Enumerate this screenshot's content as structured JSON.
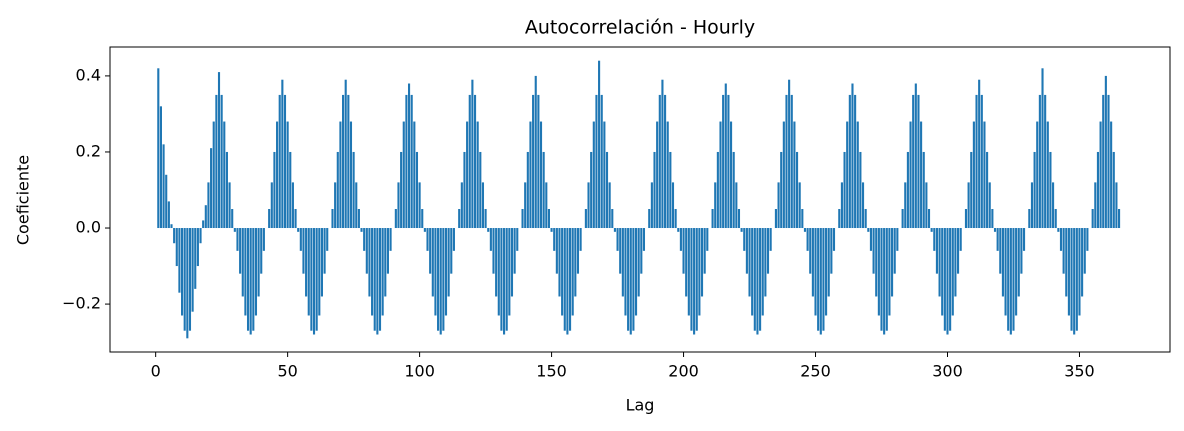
{
  "chart_data": {
    "type": "bar",
    "title": "Autocorrelación - Hourly",
    "xlabel": "Lag",
    "ylabel": "Coeficiente",
    "color": "#1f77b4",
    "x": [
      1,
      2,
      3,
      4,
      5,
      6,
      7,
      8,
      9,
      10,
      11,
      12,
      13,
      14,
      15,
      16,
      17,
      18,
      19,
      20,
      21,
      22,
      23,
      24,
      25,
      26,
      27,
      28,
      29,
      30,
      31,
      32,
      33,
      34,
      35,
      36,
      37,
      38,
      39,
      40,
      41,
      42,
      43,
      44,
      45,
      46,
      47,
      48,
      49,
      50,
      51,
      52,
      53,
      54,
      55,
      56,
      57,
      58,
      59,
      60,
      61,
      62,
      63,
      64,
      65,
      66,
      67,
      68,
      69,
      70,
      71,
      72,
      73,
      74,
      75,
      76,
      77,
      78,
      79,
      80,
      81,
      82,
      83,
      84,
      85,
      86,
      87,
      88,
      89,
      90,
      91,
      92,
      93,
      94,
      95,
      96,
      97,
      98,
      99,
      100,
      101,
      102,
      103,
      104,
      105,
      106,
      107,
      108,
      109,
      110,
      111,
      112,
      113,
      114,
      115,
      116,
      117,
      118,
      119,
      120,
      121,
      122,
      123,
      124,
      125,
      126,
      127,
      128,
      129,
      130,
      131,
      132,
      133,
      134,
      135,
      136,
      137,
      138,
      139,
      140,
      141,
      142,
      143,
      144,
      145,
      146,
      147,
      148,
      149,
      150,
      151,
      152,
      153,
      154,
      155,
      156,
      157,
      158,
      159,
      160,
      161,
      162,
      163,
      164,
      165,
      166,
      167,
      168,
      169,
      170,
      171,
      172,
      173,
      174,
      175,
      176,
      177,
      178,
      179,
      180,
      181,
      182,
      183,
      184,
      185,
      186,
      187,
      188,
      189,
      190,
      191,
      192,
      193,
      194,
      195,
      196,
      197,
      198,
      199,
      200,
      201,
      202,
      203,
      204,
      205,
      206,
      207,
      208,
      209,
      210,
      211,
      212,
      213,
      214,
      215,
      216,
      217,
      218,
      219,
      220,
      221,
      222,
      223,
      224,
      225,
      226,
      227,
      228,
      229,
      230,
      231,
      232,
      233,
      234,
      235,
      236,
      237,
      238,
      239,
      240,
      241,
      242,
      243,
      244,
      245,
      246,
      247,
      248,
      249,
      250,
      251,
      252,
      253,
      254,
      255,
      256,
      257,
      258,
      259,
      260,
      261,
      262,
      263,
      264,
      265,
      266,
      267,
      268,
      269,
      270,
      271,
      272,
      273,
      274,
      275,
      276,
      277,
      278,
      279,
      280,
      281,
      282,
      283,
      284,
      285,
      286,
      287,
      288,
      289,
      290,
      291,
      292,
      293,
      294,
      295,
      296,
      297,
      298,
      299,
      300,
      301,
      302,
      303,
      304,
      305,
      306,
      307,
      308,
      309,
      310,
      311,
      312,
      313,
      314,
      315,
      316,
      317,
      318,
      319,
      320,
      321,
      322,
      323,
      324,
      325,
      326,
      327,
      328,
      329,
      330,
      331,
      332,
      333,
      334,
      335,
      336,
      337,
      338,
      339,
      340,
      341,
      342,
      343,
      344,
      345,
      346,
      347,
      348,
      349,
      350,
      351,
      352,
      353,
      354,
      355,
      356,
      357,
      358,
      359,
      360,
      361,
      362,
      363,
      364,
      365
    ],
    "values": [
      0.42,
      0.32,
      0.22,
      0.14,
      0.07,
      0.01,
      -0.04,
      -0.1,
      -0.17,
      -0.23,
      -0.27,
      -0.29,
      -0.27,
      -0.22,
      -0.16,
      -0.1,
      -0.04,
      0.02,
      0.06,
      0.12,
      0.21,
      0.28,
      0.35,
      0.41,
      0.35,
      0.28,
      0.2,
      0.12,
      0.05,
      -0.01,
      -0.06,
      -0.12,
      -0.18,
      -0.23,
      -0.27,
      -0.28,
      -0.27,
      -0.23,
      -0.18,
      -0.12,
      -0.06,
      0,
      0.05,
      0.12,
      0.2,
      0.28,
      0.35,
      0.39,
      0.35,
      0.28,
      0.2,
      0.12,
      0.05,
      -0.01,
      -0.06,
      -0.12,
      -0.18,
      -0.23,
      -0.27,
      -0.28,
      -0.27,
      -0.23,
      -0.18,
      -0.12,
      -0.06,
      0,
      0.05,
      0.12,
      0.2,
      0.28,
      0.35,
      0.39,
      0.35,
      0.28,
      0.2,
      0.12,
      0.05,
      -0.01,
      -0.06,
      -0.12,
      -0.18,
      -0.23,
      -0.27,
      -0.28,
      -0.27,
      -0.23,
      -0.18,
      -0.12,
      -0.06,
      0,
      0.05,
      0.12,
      0.2,
      0.28,
      0.35,
      0.38,
      0.35,
      0.28,
      0.2,
      0.12,
      0.05,
      -0.01,
      -0.06,
      -0.12,
      -0.18,
      -0.23,
      -0.27,
      -0.28,
      -0.27,
      -0.23,
      -0.18,
      -0.12,
      -0.06,
      0,
      0.05,
      0.12,
      0.2,
      0.28,
      0.35,
      0.39,
      0.35,
      0.28,
      0.2,
      0.12,
      0.05,
      -0.01,
      -0.06,
      -0.12,
      -0.18,
      -0.23,
      -0.27,
      -0.28,
      -0.27,
      -0.23,
      -0.18,
      -0.12,
      -0.06,
      0,
      0.05,
      0.12,
      0.2,
      0.28,
      0.35,
      0.4,
      0.35,
      0.28,
      0.2,
      0.12,
      0.05,
      -0.01,
      -0.06,
      -0.12,
      -0.18,
      -0.23,
      -0.27,
      -0.28,
      -0.27,
      -0.23,
      -0.18,
      -0.12,
      -0.06,
      0,
      0.05,
      0.12,
      0.2,
      0.28,
      0.35,
      0.44,
      0.35,
      0.28,
      0.2,
      0.12,
      0.05,
      -0.01,
      -0.06,
      -0.12,
      -0.18,
      -0.23,
      -0.27,
      -0.28,
      -0.27,
      -0.23,
      -0.18,
      -0.12,
      -0.06,
      0,
      0.05,
      0.12,
      0.2,
      0.28,
      0.35,
      0.39,
      0.35,
      0.28,
      0.2,
      0.12,
      0.05,
      -0.01,
      -0.06,
      -0.12,
      -0.18,
      -0.23,
      -0.27,
      -0.28,
      -0.27,
      -0.23,
      -0.18,
      -0.12,
      -0.06,
      0,
      0.05,
      0.12,
      0.2,
      0.28,
      0.35,
      0.38,
      0.35,
      0.28,
      0.2,
      0.12,
      0.05,
      -0.01,
      -0.06,
      -0.12,
      -0.18,
      -0.23,
      -0.27,
      -0.28,
      -0.27,
      -0.23,
      -0.18,
      -0.12,
      -0.06,
      0,
      0.05,
      0.12,
      0.2,
      0.28,
      0.35,
      0.39,
      0.35,
      0.28,
      0.2,
      0.12,
      0.05,
      -0.01,
      -0.06,
      -0.12,
      -0.18,
      -0.23,
      -0.27,
      -0.28,
      -0.27,
      -0.23,
      -0.18,
      -0.12,
      -0.06,
      0,
      0.05,
      0.12,
      0.2,
      0.28,
      0.35,
      0.38,
      0.35,
      0.28,
      0.2,
      0.12,
      0.05,
      -0.01,
      -0.06,
      -0.12,
      -0.18,
      -0.23,
      -0.27,
      -0.28,
      -0.27,
      -0.23,
      -0.18,
      -0.12,
      -0.06,
      0,
      0.05,
      0.12,
      0.2,
      0.28,
      0.35,
      0.38,
      0.35,
      0.28,
      0.2,
      0.12,
      0.05,
      -0.01,
      -0.06,
      -0.12,
      -0.18,
      -0.23,
      -0.27,
      -0.28,
      -0.27,
      -0.23,
      -0.18,
      -0.12,
      -0.06,
      0,
      0.05,
      0.12,
      0.2,
      0.28,
      0.35,
      0.39,
      0.35,
      0.28,
      0.2,
      0.12,
      0.05,
      -0.01,
      -0.06,
      -0.12,
      -0.18,
      -0.23,
      -0.27,
      -0.28,
      -0.27,
      -0.23,
      -0.18,
      -0.12,
      -0.06,
      0,
      0.05,
      0.12,
      0.2,
      0.28,
      0.35,
      0.42,
      0.35,
      0.28,
      0.2,
      0.12,
      0.05,
      -0.01,
      -0.06,
      -0.12,
      -0.18,
      -0.23,
      -0.27,
      -0.28,
      -0.27,
      -0.23,
      -0.18,
      -0.12,
      -0.06,
      0,
      0.05,
      0.12,
      0.2,
      0.28,
      0.35,
      0.4,
      0.35,
      0.28,
      0.2,
      0.12,
      0.05
    ],
    "xlim": [
      -17.3,
      384.3
    ],
    "xticks": [
      0,
      50,
      100,
      150,
      200,
      250,
      300,
      350
    ],
    "ylim": [
      -0.326,
      0.476
    ],
    "yticks": [
      {
        "value": -0.2,
        "label": "−0.2"
      },
      {
        "value": 0,
        "label": "0.0"
      },
      {
        "value": 0.2,
        "label": "0.2"
      },
      {
        "value": 0.4,
        "label": "0.4"
      }
    ],
    "grid": false
  }
}
